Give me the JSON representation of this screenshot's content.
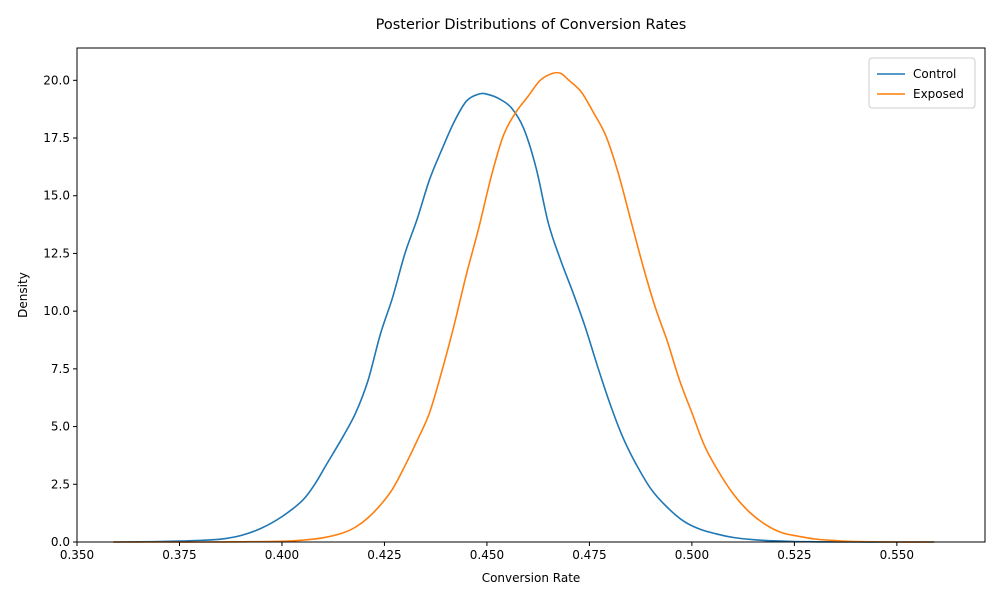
{
  "chart_data": {
    "type": "line",
    "title": "Posterior Distributions of Conversion Rates",
    "xlabel": "Conversion Rate",
    "ylabel": "Density",
    "xlim": [
      0.35,
      0.5715
    ],
    "ylim": [
      0,
      21.4
    ],
    "xticks": [
      0.35,
      0.375,
      0.4,
      0.425,
      0.45,
      0.475,
      0.5,
      0.525,
      0.55
    ],
    "xtick_labels": [
      "0.350",
      "0.375",
      "0.400",
      "0.425",
      "0.450",
      "0.475",
      "0.500",
      "0.525",
      "0.550"
    ],
    "yticks": [
      0,
      2.5,
      5,
      7.5,
      10,
      12.5,
      15,
      17.5,
      20
    ],
    "ytick_labels": [
      "0.0",
      "2.5",
      "5.0",
      "7.5",
      "10.0",
      "12.5",
      "15.0",
      "17.5",
      "20.0"
    ],
    "grid": false,
    "legend": {
      "position": "top-right",
      "entries": [
        "Control",
        "Exposed"
      ]
    },
    "series": [
      {
        "name": "Control",
        "color": "#1f77b4",
        "x": [
          0.359,
          0.365,
          0.37,
          0.375,
          0.38,
          0.385,
          0.39,
          0.395,
          0.4,
          0.405,
          0.408,
          0.411,
          0.415,
          0.418,
          0.421,
          0.424,
          0.427,
          0.43,
          0.433,
          0.436,
          0.439,
          0.442,
          0.445,
          0.448,
          0.45,
          0.453,
          0.456,
          0.459,
          0.462,
          0.465,
          0.468,
          0.471,
          0.474,
          0.477,
          0.48,
          0.483,
          0.486,
          0.49,
          0.494,
          0.498,
          0.502,
          0.506,
          0.51,
          0.515,
          0.52,
          0.525,
          0.53,
          0.54,
          0.55,
          0.559
        ],
        "y": [
          0.0,
          0.01,
          0.02,
          0.04,
          0.07,
          0.12,
          0.28,
          0.6,
          1.1,
          1.8,
          2.5,
          3.4,
          4.6,
          5.6,
          7.0,
          9.0,
          10.6,
          12.5,
          14.0,
          15.7,
          17.0,
          18.2,
          19.1,
          19.4,
          19.4,
          19.2,
          18.8,
          17.9,
          16.2,
          13.8,
          12.2,
          10.8,
          9.3,
          7.6,
          6.0,
          4.6,
          3.5,
          2.3,
          1.5,
          0.9,
          0.55,
          0.35,
          0.2,
          0.1,
          0.05,
          0.02,
          0.01,
          0.0,
          0.0,
          0.0
        ]
      },
      {
        "name": "Exposed",
        "color": "#ff7f0e",
        "x": [
          0.359,
          0.37,
          0.38,
          0.39,
          0.4,
          0.405,
          0.41,
          0.415,
          0.418,
          0.421,
          0.424,
          0.427,
          0.43,
          0.433,
          0.436,
          0.439,
          0.442,
          0.445,
          0.448,
          0.451,
          0.454,
          0.457,
          0.46,
          0.463,
          0.466,
          0.468,
          0.47,
          0.473,
          0.476,
          0.479,
          0.482,
          0.485,
          0.488,
          0.491,
          0.494,
          0.497,
          0.5,
          0.503,
          0.506,
          0.51,
          0.514,
          0.518,
          0.522,
          0.526,
          0.53,
          0.535,
          0.54,
          0.55,
          0.559
        ],
        "y": [
          0.0,
          0.0,
          0.0,
          0.01,
          0.03,
          0.08,
          0.18,
          0.4,
          0.65,
          1.05,
          1.6,
          2.3,
          3.3,
          4.4,
          5.6,
          7.4,
          9.4,
          11.6,
          13.6,
          15.8,
          17.6,
          18.6,
          19.3,
          20.0,
          20.3,
          20.3,
          20.0,
          19.5,
          18.6,
          17.6,
          16.0,
          14.0,
          12.0,
          10.2,
          8.7,
          7.0,
          5.6,
          4.2,
          3.2,
          2.1,
          1.3,
          0.75,
          0.4,
          0.25,
          0.13,
          0.06,
          0.02,
          0.0,
          0.0
        ]
      }
    ]
  }
}
